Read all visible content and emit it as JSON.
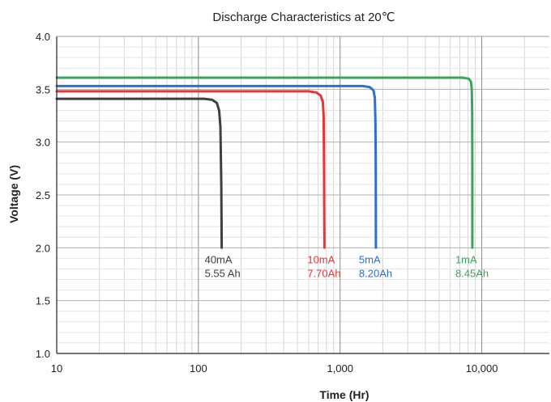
{
  "chart_data": {
    "type": "line",
    "title": "Discharge Characteristics at 20℃",
    "xlabel": "Time (Hr)",
    "ylabel": "Voltage (V)",
    "x_scale": "log",
    "xlim": [
      10,
      30000
    ],
    "ylim": [
      1.0,
      4.0
    ],
    "grid": true,
    "x_ticks": [
      "10",
      "100",
      "1,000",
      "10,000"
    ],
    "x_tick_values": [
      10,
      100,
      1000,
      10000
    ],
    "y_ticks": [
      "1.0",
      "1.5",
      "2.0",
      "2.5",
      "3.0",
      "3.5",
      "4.0"
    ],
    "y_tick_values": [
      1.0,
      1.5,
      2.0,
      2.5,
      3.0,
      3.5,
      4.0
    ],
    "series": [
      {
        "name": "40mA",
        "annotation": [
          "40mA",
          "5.55 Ah"
        ],
        "color": "#404040",
        "x": [
          10,
          110,
          125,
          135,
          140,
          143,
          145,
          146
        ],
        "y": [
          3.41,
          3.41,
          3.4,
          3.37,
          3.3,
          3.15,
          2.6,
          2.0
        ]
      },
      {
        "name": "10mA",
        "annotation": [
          "10mA",
          "7.70Ah"
        ],
        "color": "#e8333a",
        "x": [
          10,
          600,
          680,
          730,
          755,
          765,
          770,
          775
        ],
        "y": [
          3.48,
          3.48,
          3.47,
          3.44,
          3.38,
          3.25,
          2.8,
          2.0
        ]
      },
      {
        "name": "5mA",
        "annotation": [
          "5mA",
          "8.20Ah"
        ],
        "color": "#2e6fd1",
        "x": [
          10,
          1450,
          1620,
          1720,
          1760,
          1775,
          1785,
          1790
        ],
        "y": [
          3.53,
          3.53,
          3.52,
          3.49,
          3.42,
          3.2,
          2.8,
          2.0
        ]
      },
      {
        "name": "1mA",
        "annotation": [
          "1mA",
          "8.45Ah"
        ],
        "color": "#3aa55a",
        "x": [
          10,
          7300,
          8100,
          8400,
          8500,
          8550,
          8570,
          8580
        ],
        "y": [
          3.61,
          3.61,
          3.6,
          3.57,
          3.5,
          3.3,
          2.8,
          2.0
        ]
      }
    ]
  }
}
